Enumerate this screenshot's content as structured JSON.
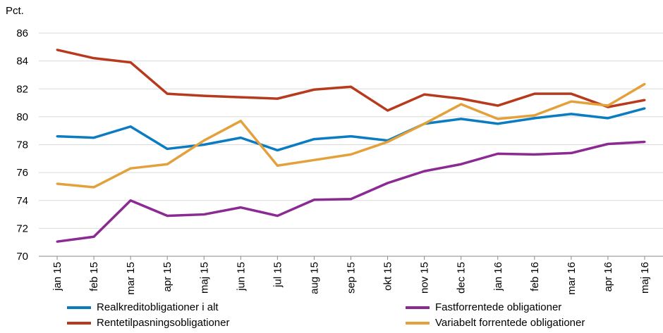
{
  "chart_data": {
    "type": "line",
    "ylabel": "Pct.",
    "ylim": [
      70,
      86
    ],
    "yticks": [
      70,
      72,
      74,
      76,
      78,
      80,
      82,
      84,
      86
    ],
    "grid": true,
    "legend_position": "bottom",
    "categories": [
      "jan 15",
      "feb 15",
      "mar 15",
      "apr 15",
      "maj 15",
      "jun 15",
      "jul 15",
      "aug 15",
      "sep 15",
      "okt 15",
      "nov 15",
      "dec 15",
      "jan 16",
      "feb 16",
      "mar 16",
      "apr 16",
      "maj 16"
    ],
    "series": [
      {
        "name": "Realkreditobligationer i alt",
        "color": "#0b7cc1",
        "values": [
          78.6,
          78.5,
          79.3,
          77.7,
          78.0,
          78.5,
          77.6,
          78.4,
          78.6,
          78.3,
          79.5,
          79.85,
          79.5,
          79.9,
          80.2,
          79.9,
          80.6
        ]
      },
      {
        "name": "Fastforrentede obligationer",
        "color": "#8a2a92",
        "values": [
          71.05,
          71.4,
          74.0,
          72.9,
          73.0,
          73.5,
          72.9,
          74.05,
          74.1,
          75.25,
          76.1,
          76.6,
          77.35,
          77.3,
          77.4,
          78.05,
          78.2
        ]
      },
      {
        "name": "Rentetilpasningsobligationer",
        "color": "#b83a1d",
        "values": [
          84.8,
          84.2,
          83.9,
          81.65,
          81.5,
          81.4,
          81.3,
          81.95,
          82.15,
          80.45,
          81.6,
          81.3,
          80.8,
          81.65,
          81.65,
          80.7,
          81.2
        ]
      },
      {
        "name": "Variabelt forrentede obligationer",
        "color": "#e3a13c",
        "values": [
          75.2,
          74.95,
          76.3,
          76.6,
          78.3,
          79.7,
          76.5,
          76.9,
          77.3,
          78.2,
          79.5,
          80.9,
          79.85,
          80.1,
          81.1,
          80.8,
          82.35
        ]
      }
    ]
  }
}
